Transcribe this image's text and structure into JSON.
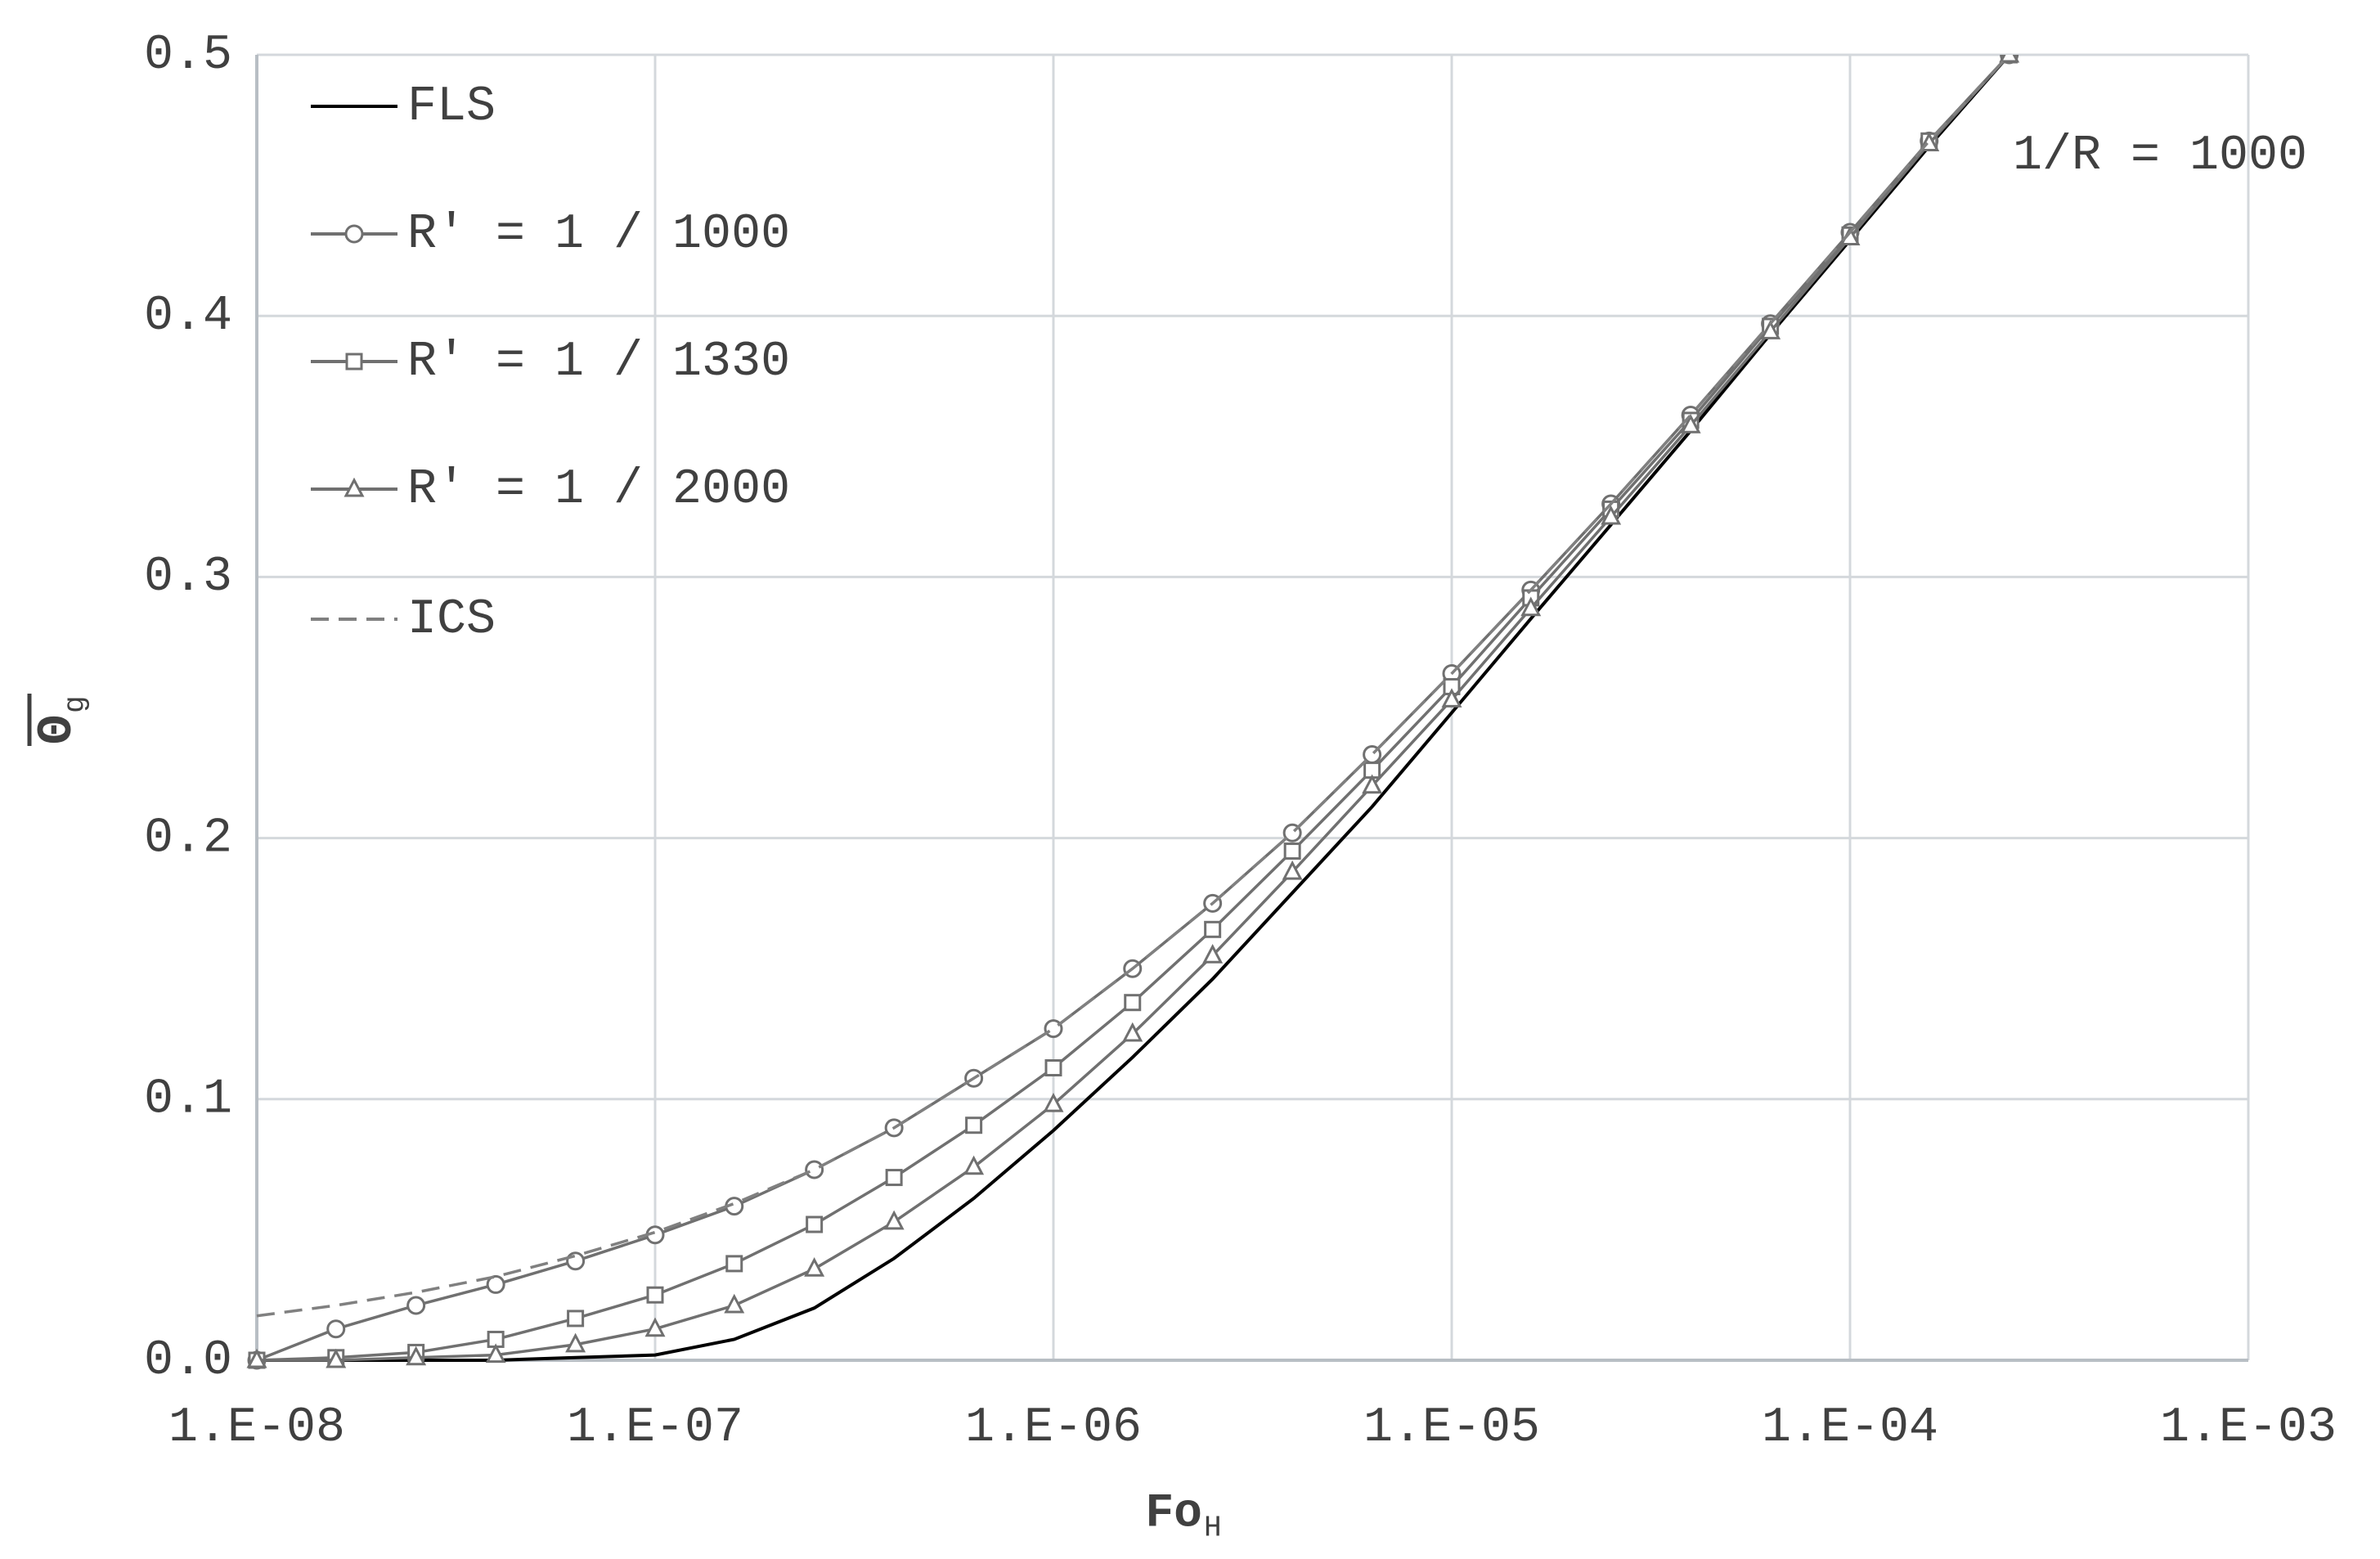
{
  "chart_data": {
    "type": "line",
    "x_label": "Fo",
    "x_label_sub": "H",
    "y_label": "Θ",
    "y_label_sub": "g",
    "annotation": "1/R = 1000",
    "xscale": "log",
    "grid": true,
    "legend": "upper-left",
    "x": [
      1e-08,
      1.58e-08,
      2.51e-08,
      3.98e-08,
      6.31e-08,
      1e-07,
      1.58e-07,
      2.51e-07,
      3.98e-07,
      6.31e-07,
      1e-06,
      1.58e-06,
      2.51e-06,
      3.98e-06,
      6.31e-06,
      1e-05,
      1.58e-05,
      2.51e-05,
      3.98e-05,
      6.31e-05,
      0.0001,
      0.000158,
      0.000251
    ],
    "series": [
      {
        "name": "FLS",
        "color": "#000000",
        "marker": "none",
        "dashed": false,
        "values": [
          0,
          0,
          0,
          0,
          0.001,
          0.002,
          0.008,
          0.02,
          0.039,
          0.062,
          0.088,
          0.116,
          0.146,
          0.179,
          0.212,
          0.248,
          0.284,
          0.32,
          0.356,
          0.393,
          0.429,
          0.465,
          0.5
        ]
      },
      {
        "name": "R' = 1 / 1000",
        "color": "#707070",
        "marker": "circle",
        "dashed": false,
        "values": [
          0,
          0.012,
          0.021,
          0.029,
          0.038,
          0.048,
          0.059,
          0.073,
          0.089,
          0.108,
          0.127,
          0.15,
          0.175,
          0.202,
          0.232,
          0.263,
          0.295,
          0.328,
          0.362,
          0.397,
          0.432,
          0.467,
          0.5
        ]
      },
      {
        "name": "R' = 1 / 1330",
        "color": "#707070",
        "marker": "square",
        "dashed": false,
        "values": [
          0,
          0.001,
          0.003,
          0.008,
          0.016,
          0.025,
          0.037,
          0.052,
          0.07,
          0.09,
          0.112,
          0.137,
          0.165,
          0.195,
          0.226,
          0.258,
          0.292,
          0.326,
          0.36,
          0.396,
          0.431,
          0.467,
          0.5
        ]
      },
      {
        "name": "R' = 1 / 2000",
        "color": "#707070",
        "marker": "triangle",
        "dashed": false,
        "values": [
          0,
          0,
          0.001,
          0.002,
          0.006,
          0.012,
          0.021,
          0.035,
          0.053,
          0.074,
          0.098,
          0.125,
          0.155,
          0.187,
          0.22,
          0.253,
          0.288,
          0.323,
          0.358,
          0.394,
          0.43,
          0.466,
          0.5
        ]
      },
      {
        "name": "ICS",
        "color": "#808080",
        "marker": "none",
        "dashed": true,
        "values": [
          0.017,
          0.021,
          0.026,
          0.032,
          0.04,
          0.049,
          0.06,
          0.073,
          0.089,
          0.108,
          0.127,
          0.15,
          0.175,
          0.202,
          0.232,
          0.263,
          0.295,
          0.328,
          0.362,
          0.397,
          0.432,
          0.467,
          0.5
        ]
      }
    ],
    "xlim": [
      1e-08,
      0.001
    ],
    "xticks": [
      {
        "value": 1e-08,
        "label": "1.E-08"
      },
      {
        "value": 1e-07,
        "label": "1.E-07"
      },
      {
        "value": 1e-06,
        "label": "1.E-06"
      },
      {
        "value": 1e-05,
        "label": "1.E-05"
      },
      {
        "value": 0.0001,
        "label": "1.E-04"
      },
      {
        "value": 0.001,
        "label": "1.E-03"
      }
    ],
    "ylim": [
      0,
      0.5
    ],
    "yticks": [
      {
        "value": 0,
        "label": "0.0"
      },
      0.1,
      0.2,
      0.3,
      0.4,
      0.5
    ]
  }
}
